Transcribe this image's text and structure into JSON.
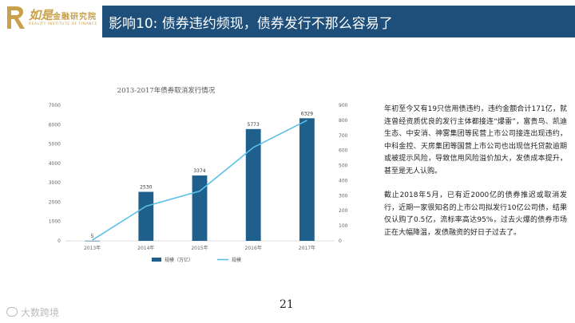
{
  "header": {
    "logo_name": "如是",
    "logo_sub": "金融研究院",
    "logo_en": "REALITY INSTITUTE OF FINANCE",
    "title": "影响10: 债券违约频现，债券发行不那么容易了"
  },
  "chart_data": {
    "type": "bar+line",
    "title": "2013-2017年债券取消发行情况",
    "categories": [
      "2013年",
      "2014年",
      "2015年",
      "2016年",
      "2017年"
    ],
    "series": [
      {
        "name": "规模（万亿）",
        "type": "bar",
        "axis": "left",
        "values": [
          5,
          2530,
          3374,
          5773,
          6329
        ],
        "color": "#1f5f8b"
      },
      {
        "name": "规模",
        "type": "line",
        "axis": "right",
        "values": [
          5,
          230,
          330,
          620,
          800
        ],
        "color": "#5bc0e8"
      }
    ],
    "y_left": {
      "ticks": [
        "0",
        "1000",
        "2000",
        "3000",
        "4000",
        "5000",
        "6000",
        "7000"
      ],
      "range": [
        0,
        7000
      ]
    },
    "y_right": {
      "ticks": [
        "0",
        "100",
        "200",
        "300",
        "400",
        "500",
        "600",
        "700",
        "800",
        "900"
      ],
      "range": [
        0,
        900
      ]
    },
    "legend_position": "bottom",
    "grid": false
  },
  "text": {
    "para1": "年初至今又有19只信用债违约，违约金额合计171亿，就连曾经资质优良的发行主体都接连“爆雷”，富贵鸟、凯迪生态、中安消、神雾集团等民营上市公司接连出现违约，中科金控、天房集团等国营上市公司也出现信托贷款逾期或被提示风险，导致信用风险溢价加大，发债成本提升，甚至是无人认购。",
    "para2": "截止2018年5月，已有近2000亿的债券推迟或取消发行，近期一家很知名的上市公司拟发行10亿公司债，结果仅认购了0.5亿，流标率高达95%，过去火爆的债券市场正在大幅降温，发债融资的好日子过去了。"
  },
  "footer": {
    "page_number": "21",
    "watermark": "大数跨境"
  }
}
